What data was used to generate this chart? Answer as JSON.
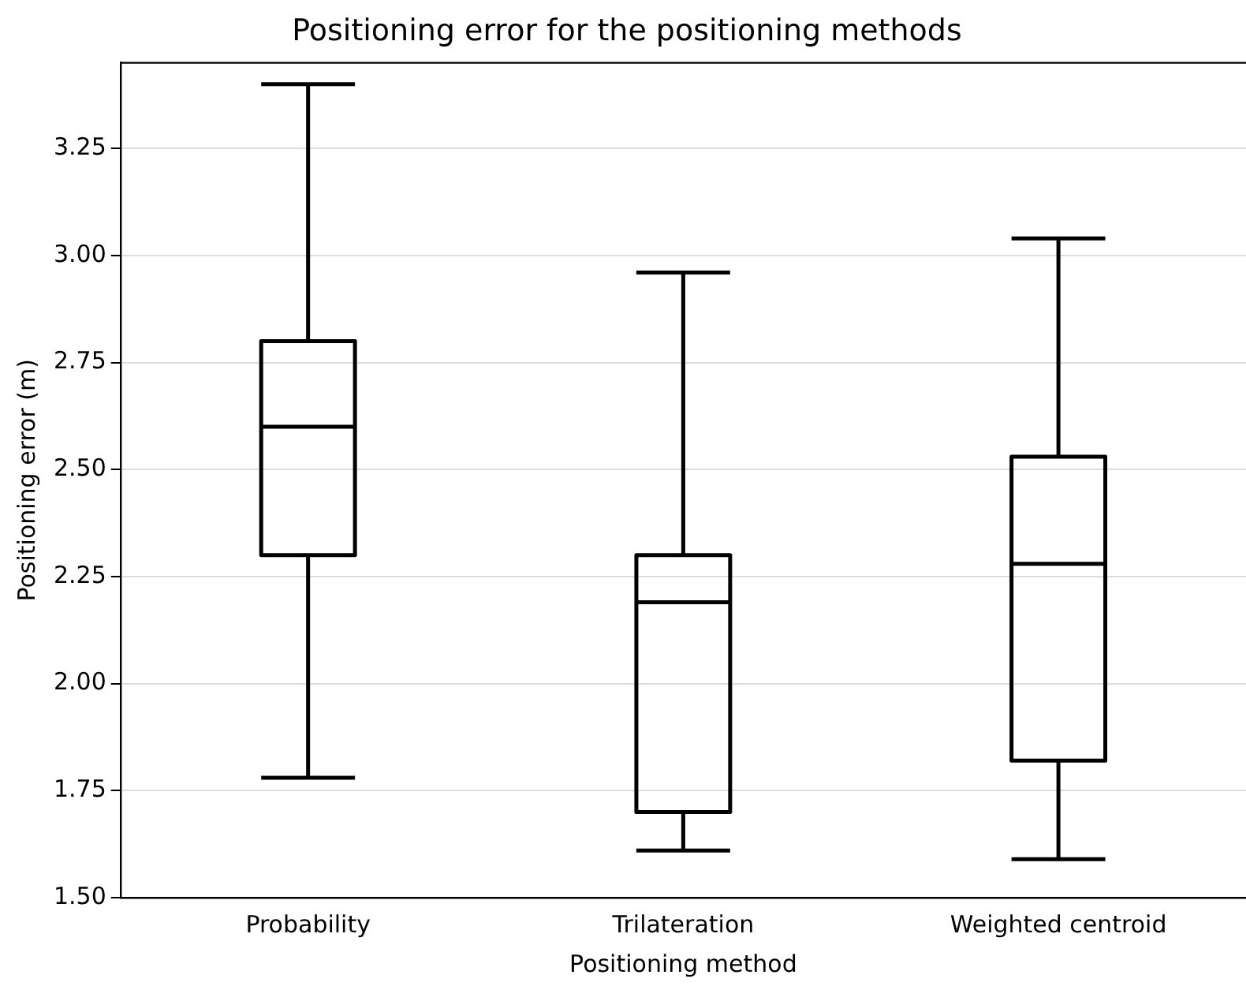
{
  "chart_data": {
    "type": "box",
    "title": "Positioning error for the positioning methods",
    "xlabel": "Positioning method",
    "ylabel": "Positioning error (m)",
    "categories": [
      "Probability",
      "Trilateration",
      "Weighted centroid"
    ],
    "boxes": [
      {
        "low": 1.78,
        "q1": 2.3,
        "median": 2.6,
        "q3": 2.8,
        "high": 3.4
      },
      {
        "low": 1.61,
        "q1": 1.7,
        "median": 2.19,
        "q3": 2.3,
        "high": 2.96
      },
      {
        "low": 1.59,
        "q1": 1.82,
        "median": 2.28,
        "q3": 2.53,
        "high": 3.04
      }
    ],
    "color": "#000000",
    "ylim": [
      1.5,
      3.45
    ],
    "yticks": [
      {
        "value": 1.5,
        "label": "1.50"
      },
      {
        "value": 1.75,
        "label": "1.75"
      },
      {
        "value": 2.0,
        "label": "2.00"
      },
      {
        "value": 2.25,
        "label": "2.25"
      },
      {
        "value": 2.5,
        "label": "2.50"
      },
      {
        "value": 2.75,
        "label": "2.75"
      },
      {
        "value": 3.0,
        "label": "3.00"
      },
      {
        "value": 3.25,
        "label": "3.25"
      }
    ],
    "grid": "y",
    "legend": false
  }
}
